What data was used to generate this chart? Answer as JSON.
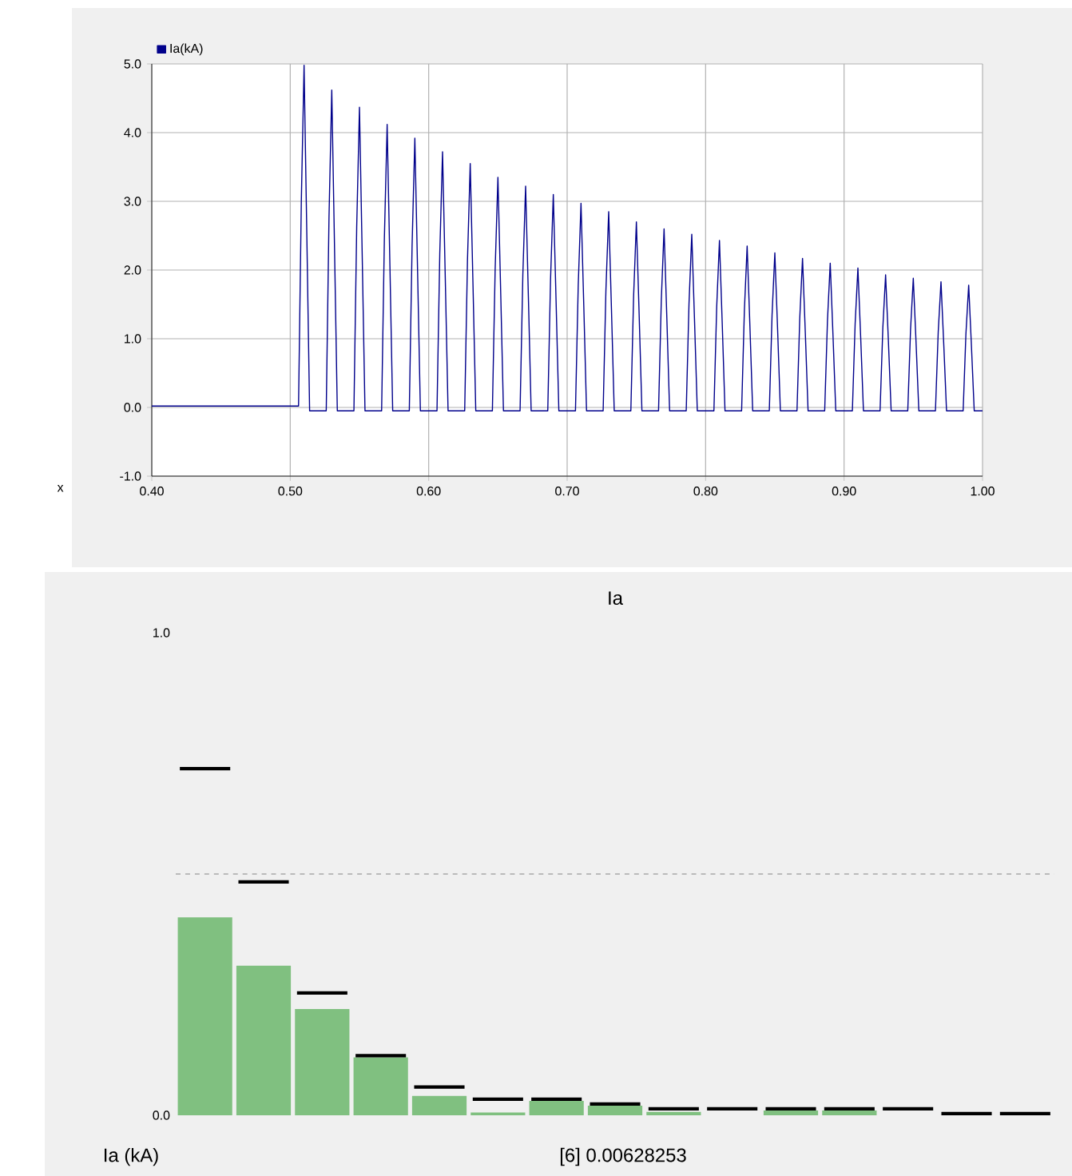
{
  "chart_data": [
    {
      "type": "line",
      "xlabel": "x",
      "xlim": [
        0.4,
        1.0
      ],
      "xticks": [
        {
          "value": 0.4,
          "label": "0.40"
        },
        {
          "value": 0.5,
          "label": "0.50"
        },
        {
          "value": 0.6,
          "label": "0.60"
        },
        {
          "value": 0.7,
          "label": "0.70"
        },
        {
          "value": 0.8,
          "label": "0.80"
        },
        {
          "value": 0.9,
          "label": "0.90"
        },
        {
          "value": 1.0,
          "label": "1.00"
        }
      ],
      "ylim": [
        -1.0,
        5.0
      ],
      "yticks": [
        {
          "value": -1.0,
          "label": "-1.0"
        },
        {
          "value": 0.0,
          "label": "0.0"
        },
        {
          "value": 1.0,
          "label": "1.0"
        },
        {
          "value": 2.0,
          "label": "2.0"
        },
        {
          "value": 3.0,
          "label": "3.0"
        },
        {
          "value": 4.0,
          "label": "4.0"
        },
        {
          "value": 5.0,
          "label": "5.0"
        }
      ],
      "grid": true,
      "legend": "top left",
      "series": [
        {
          "name": "Ia(kA)",
          "color": "#00008b",
          "x": [
            0.4,
            0.506,
            0.508,
            0.51,
            0.512,
            0.514,
            0.526,
            0.528,
            0.53,
            0.532,
            0.534,
            0.546,
            0.548,
            0.55,
            0.552,
            0.554,
            0.566,
            0.568,
            0.57,
            0.572,
            0.574,
            0.586,
            0.588,
            0.59,
            0.592,
            0.594,
            0.606,
            0.608,
            0.61,
            0.612,
            0.614,
            0.626,
            0.628,
            0.63,
            0.632,
            0.634,
            0.646,
            0.648,
            0.65,
            0.652,
            0.654,
            0.666,
            0.668,
            0.67,
            0.672,
            0.674,
            0.686,
            0.688,
            0.69,
            0.692,
            0.694,
            0.706,
            0.708,
            0.71,
            0.712,
            0.714,
            0.726,
            0.728,
            0.73,
            0.732,
            0.734,
            0.746,
            0.748,
            0.75,
            0.752,
            0.754,
            0.766,
            0.768,
            0.77,
            0.772,
            0.774,
            0.786,
            0.788,
            0.79,
            0.792,
            0.794,
            0.806,
            0.808,
            0.81,
            0.812,
            0.814,
            0.826,
            0.828,
            0.83,
            0.832,
            0.834,
            0.846,
            0.848,
            0.85,
            0.852,
            0.854,
            0.866,
            0.868,
            0.87,
            0.872,
            0.874,
            0.886,
            0.888,
            0.89,
            0.892,
            0.894,
            0.906,
            0.908,
            0.91,
            0.912,
            0.914,
            0.926,
            0.928,
            0.93,
            0.932,
            0.934,
            0.946,
            0.948,
            0.95,
            0.952,
            0.954,
            0.966,
            0.968,
            0.97,
            0.972,
            0.974,
            0.986,
            0.988,
            0.99,
            0.992,
            0.994,
            1.0
          ],
          "values": [
            0.02,
            0.02,
            2.99,
            4.98,
            2.49,
            -0.05,
            -0.05,
            2.77,
            4.62,
            2.31,
            -0.05,
            -0.05,
            2.62,
            4.37,
            2.19,
            -0.05,
            -0.05,
            2.47,
            4.12,
            2.06,
            -0.05,
            -0.05,
            2.35,
            3.92,
            1.96,
            -0.05,
            -0.05,
            2.23,
            3.72,
            1.86,
            -0.05,
            -0.05,
            2.13,
            3.55,
            1.78,
            -0.05,
            -0.05,
            2.01,
            3.35,
            1.68,
            -0.05,
            -0.05,
            1.93,
            3.22,
            1.61,
            -0.05,
            -0.05,
            1.86,
            3.1,
            1.55,
            -0.05,
            -0.05,
            1.78,
            2.97,
            1.49,
            -0.05,
            -0.05,
            1.71,
            2.85,
            1.43,
            -0.05,
            -0.05,
            1.62,
            2.7,
            1.35,
            -0.05,
            -0.05,
            1.56,
            2.6,
            1.3,
            -0.05,
            -0.05,
            1.51,
            2.52,
            1.26,
            -0.05,
            -0.05,
            1.46,
            2.43,
            1.22,
            -0.05,
            -0.05,
            1.41,
            2.35,
            1.18,
            -0.05,
            -0.05,
            1.35,
            2.25,
            1.13,
            -0.05,
            -0.05,
            1.3,
            2.17,
            1.09,
            -0.05,
            -0.05,
            1.26,
            2.1,
            1.05,
            -0.05,
            -0.05,
            1.22,
            2.03,
            1.02,
            -0.05,
            -0.05,
            1.16,
            1.93,
            0.97,
            -0.05,
            -0.05,
            1.13,
            1.88,
            0.94,
            -0.05,
            -0.05,
            1.1,
            1.83,
            0.92,
            -0.05,
            -0.05,
            1.07,
            1.78,
            0.89,
            -0.05,
            -0.05
          ]
        }
      ]
    },
    {
      "type": "bar",
      "title": "Ia",
      "categories": [
        null,
        null,
        null,
        null,
        null,
        null,
        null,
        null,
        null,
        null,
        null,
        null,
        null,
        null,
        null
      ],
      "ylim": [
        0.0,
        1.0
      ],
      "yticks": [
        {
          "value": 0.0,
          "label": "0.0"
        },
        {
          "value": 1.0,
          "label": "1.0"
        }
      ],
      "ref_lines": [
        {
          "axis": "y",
          "value": 0.5,
          "color": "#a8a8a8",
          "line_style": "dashed"
        }
      ],
      "annotations": [
        "Ia (kA)",
        "[6]  0.00628253"
      ],
      "series": [
        {
          "type": "bar",
          "color": "#80c080",
          "values": [
            0.41,
            0.31,
            0.22,
            0.12,
            0.04,
            0.006,
            0.03,
            0.02,
            0.007,
            null,
            0.01,
            0.01,
            null,
            null,
            null
          ]
        },
        {
          "type": "bar",
          "color": "#000000",
          "base": [
            0.715,
            0.48,
            0.25,
            0.12,
            0.055,
            0.03,
            0.03,
            0.02,
            0.01,
            0.01,
            0.01,
            0.01,
            0.01,
            0.0,
            0.0
          ],
          "values": [
            0.007,
            0.007,
            0.007,
            0.007,
            0.007,
            0.007,
            0.007,
            0.007,
            0.007,
            0.007,
            0.007,
            0.007,
            0.007,
            0.007,
            0.007
          ]
        }
      ]
    }
  ]
}
